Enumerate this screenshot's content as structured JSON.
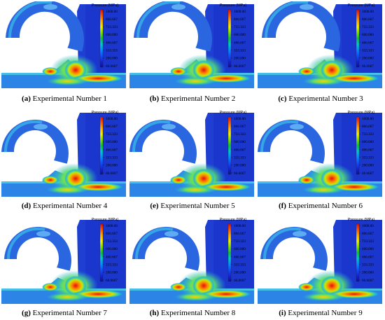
{
  "legend": {
    "title": "Pressure (MPa)",
    "ticks": [
      "1000.00",
      "866.667",
      "733.333",
      "600.000",
      "466.667",
      "333.333",
      "200.000",
      "66.6667"
    ],
    "colors": [
      "#e01010",
      "#ff5a00",
      "#ffb000",
      "#f2f000",
      "#7fe000",
      "#10c040",
      "#00c8c8",
      "#0090ff",
      "#1050ff",
      "#1424d8",
      "#10108a"
    ]
  },
  "colors": {
    "background": "#ffffff",
    "low_pressure": "#1a3fd8",
    "mid_pressure": "#2ab0e8",
    "high_pressure": "#e62020"
  },
  "panels": [
    {
      "letter": "(a)",
      "label": "Experimental Number 1"
    },
    {
      "letter": "(b)",
      "label": "Experimental Number 2"
    },
    {
      "letter": "(c)",
      "label": "Experimental Number 3"
    },
    {
      "letter": "(d)",
      "label": "Experimental Number 4"
    },
    {
      "letter": "(e)",
      "label": "Experimental Number 5"
    },
    {
      "letter": "(f)",
      "label": "Experimental Number 6"
    },
    {
      "letter": "(g)",
      "label": "Experimental Number 7"
    },
    {
      "letter": "(h)",
      "label": "Experimental Number 8"
    },
    {
      "letter": "(i)",
      "label": "Experimental Number 9"
    }
  ]
}
